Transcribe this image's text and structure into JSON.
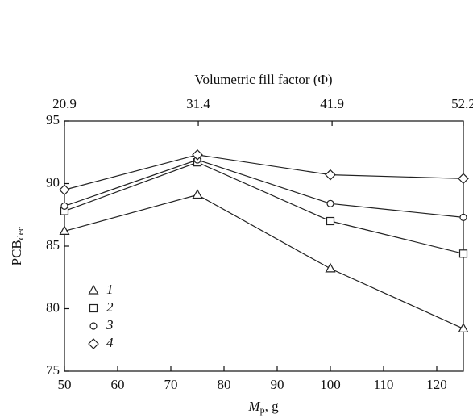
{
  "chart_data": {
    "type": "line",
    "x2label": "Volumetric fill factor (Φ)",
    "xlabel": [
      "M",
      "p",
      ", g"
    ],
    "ylabel": [
      "PCB",
      "dec"
    ],
    "x": [
      50,
      75,
      100,
      125
    ],
    "xlim": [
      50,
      125
    ],
    "xticks": [
      50,
      60,
      70,
      80,
      90,
      100,
      110,
      120
    ],
    "x2lim": [
      20.9,
      52.2
    ],
    "x2ticks": [
      20.9,
      31.4,
      41.9,
      52.2
    ],
    "ylim": [
      75,
      95
    ],
    "yticks": [
      75,
      80,
      85,
      90,
      95
    ],
    "legend": "lower left",
    "series": [
      {
        "name": "1",
        "color": "#222222",
        "marker": "triangle",
        "values": [
          86.2,
          89.1,
          83.2,
          78.4
        ]
      },
      {
        "name": "2",
        "color": "#222222",
        "marker": "square",
        "values": [
          87.8,
          91.7,
          87.0,
          84.4
        ]
      },
      {
        "name": "3",
        "color": "#222222",
        "marker": "circle",
        "values": [
          88.2,
          91.9,
          88.4,
          87.3
        ]
      },
      {
        "name": "4",
        "color": "#222222",
        "marker": "diamond",
        "values": [
          89.5,
          92.3,
          90.7,
          90.4
        ]
      }
    ]
  }
}
